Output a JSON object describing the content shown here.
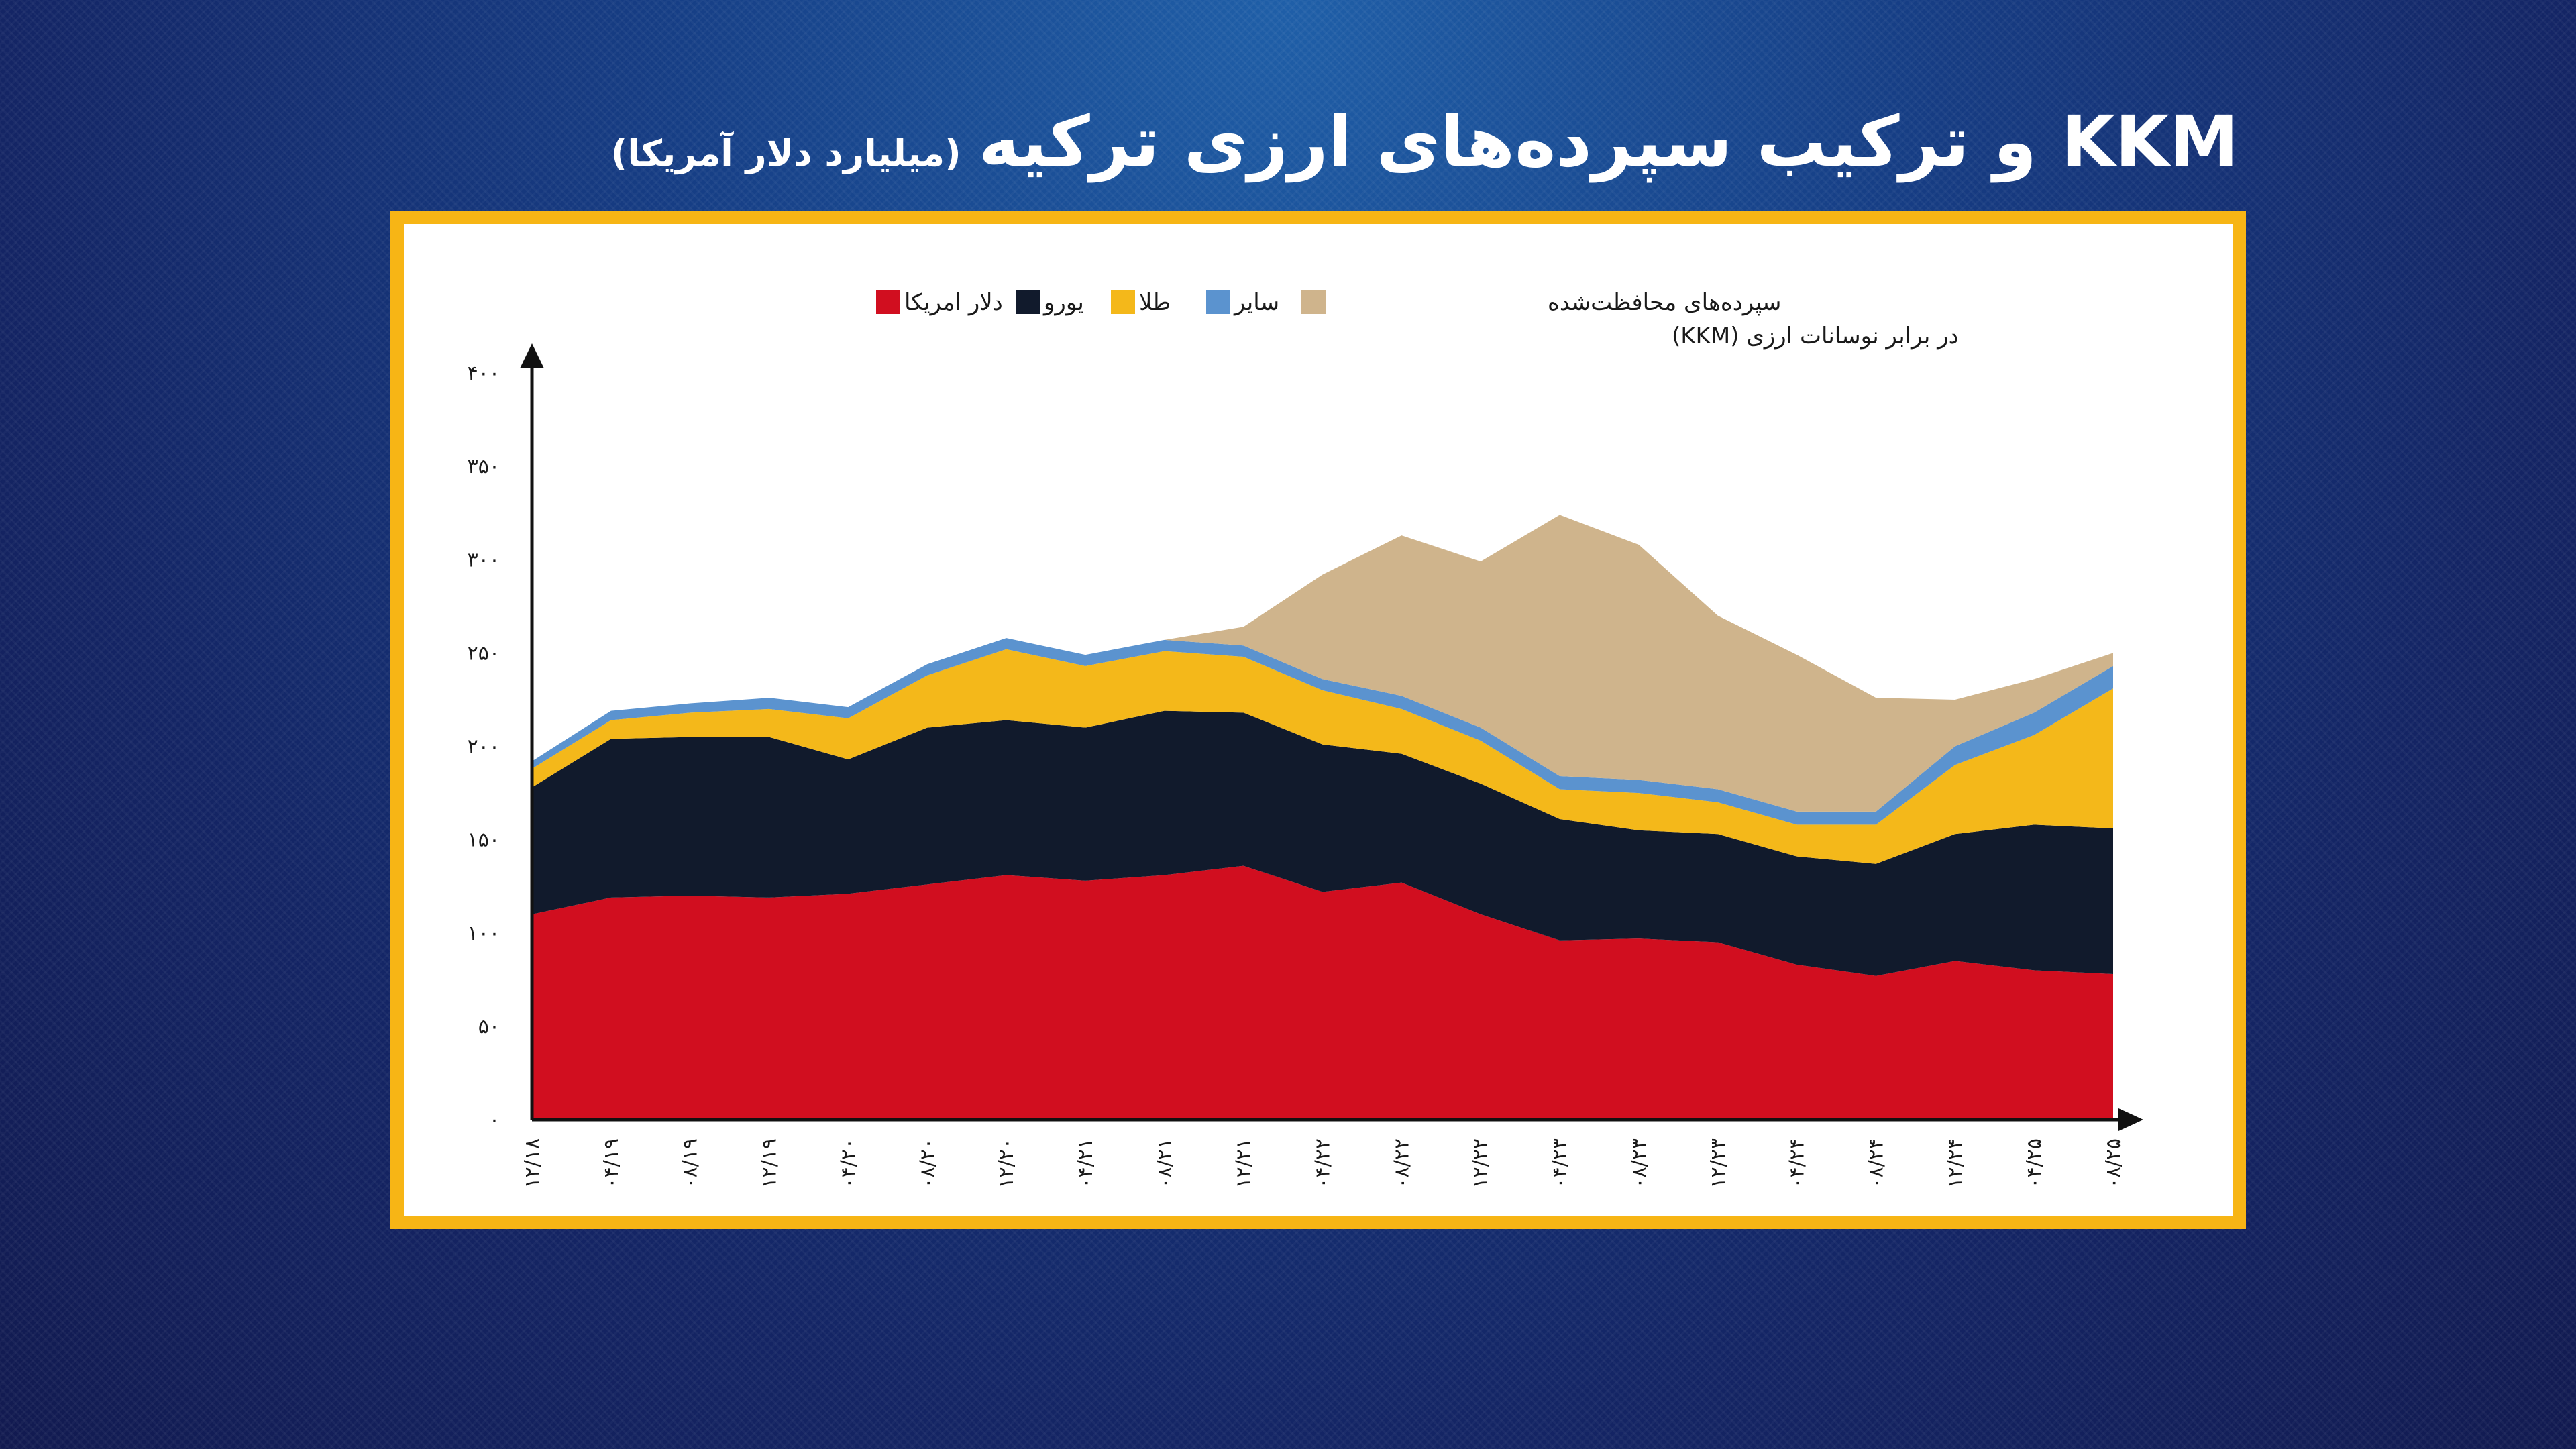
{
  "header": {
    "title": "KKM و ترکیب  سپرده‌های ارزی ترکیه",
    "subtitle": "(میلیارد دلار آمریکا)"
  },
  "colors": {
    "usd": "#d10e1f",
    "euro": "#111a2c",
    "gold": "#f4b81a",
    "other": "#5b93cf",
    "kkm": "#cfb48c",
    "frame": "#f7b515"
  },
  "chart_data": {
    "type": "area",
    "stacked": true,
    "title": "",
    "xlabel": "",
    "ylabel": "",
    "ylim": [
      0,
      400
    ],
    "y_ticks": [
      "۰",
      "۵۰",
      "۱۰۰",
      "۱۵۰",
      "۲۰۰",
      "۲۵۰",
      "۳۰۰",
      "۳۵۰",
      "۴۰۰"
    ],
    "y_tick_values": [
      0,
      50,
      100,
      150,
      200,
      250,
      300,
      350,
      400
    ],
    "x_ticks": [
      "۱۲/۱۸",
      "۰۴/۱۹",
      "۰۸/۱۹",
      "۱۲/۱۹",
      "۰۴/۲۰",
      "۰۸/۲۰",
      "۱۲/۲۰",
      "۰۴/۲۱",
      "۰۸/۲۱",
      "۱۲/۲۱",
      "۰۴/۲۲",
      "۰۸/۲۲",
      "۱۲/۲۲",
      "۰۴/۲۳",
      "۰۸/۲۳",
      "۱۲/۲۳",
      "۰۴/۲۴",
      "۰۸/۲۴",
      "۱۲/۲۴",
      "۰۴/۲۵",
      "۰۸/۲۵"
    ],
    "legend": {
      "position": "top-center",
      "entries": [
        {
          "key": "kkm",
          "label_line1": "سپرده‌های محافظت‌شده",
          "label_line2": "در برابر نوسانات ارزی (KKM)"
        },
        {
          "key": "other",
          "label": "سایر"
        },
        {
          "key": "gold",
          "label": "طلا"
        },
        {
          "key": "euro",
          "label": "یورو"
        },
        {
          "key": "usd",
          "label": "دلار امریکا"
        }
      ]
    },
    "x": [
      0,
      1,
      2,
      3,
      4,
      5,
      6,
      7,
      8,
      9,
      10,
      11,
      12,
      13,
      14,
      15,
      16,
      17,
      18,
      19,
      20
    ],
    "series": [
      {
        "key": "usd",
        "name": "دلار امریکا",
        "values": [
          110,
          119,
          120,
          119,
          121,
          126,
          131,
          128,
          131,
          136,
          122,
          127,
          110,
          96,
          97,
          95,
          83,
          77,
          85,
          80,
          78
        ]
      },
      {
        "key": "euro",
        "name": "یورو",
        "values": [
          68,
          85,
          85,
          86,
          72,
          84,
          83,
          82,
          88,
          82,
          79,
          69,
          70,
          65,
          58,
          58,
          58,
          60,
          68,
          78,
          78
        ]
      },
      {
        "key": "gold",
        "name": "طلا",
        "values": [
          10,
          10,
          13,
          15,
          22,
          28,
          38,
          33,
          32,
          30,
          29,
          24,
          23,
          16,
          20,
          17,
          17,
          21,
          37,
          48,
          75
        ]
      },
      {
        "key": "other",
        "name": "سایر",
        "values": [
          4,
          5,
          5,
          6,
          6,
          6,
          6,
          6,
          6,
          6,
          6,
          7,
          7,
          7,
          7,
          7,
          7,
          7,
          10,
          12,
          12
        ]
      },
      {
        "key": "kkm",
        "name": "سپرده‌های محافظت‌شده در برابر نوسانات ارزی (KKM)",
        "values": [
          0,
          0,
          0,
          0,
          0,
          0,
          0,
          0,
          0,
          10,
          56,
          86,
          89,
          140,
          126,
          93,
          84,
          61,
          25,
          18,
          7
        ]
      }
    ]
  }
}
